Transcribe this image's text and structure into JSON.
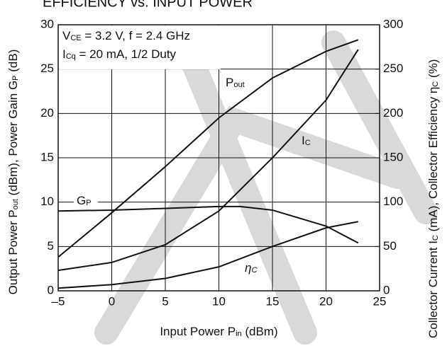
{
  "chart_data": {
    "type": "line",
    "title": "EFFICIENCY vs. INPUT POWER",
    "xlabel": [
      "Input Power  P",
      "in",
      " (dBm)"
    ],
    "ylabel": [
      "Output Power  P",
      "out",
      " (dBm), Power Gain  G",
      "P",
      " (dB)"
    ],
    "y2label": [
      "Collector Current  I",
      "C",
      " (mA), Collector Efficiency  η",
      "C",
      " (%)"
    ],
    "annotations": [
      [
        "V",
        "CE",
        " = 3.2 V, f = 2.4 GHz"
      ],
      [
        "I",
        "Cq",
        " = 20 mA, 1/2 Duty"
      ]
    ],
    "xlim": [
      -5,
      25
    ],
    "xticks": [
      {
        "value": -5,
        "label": "–5"
      },
      0,
      5,
      10,
      15,
      20,
      25
    ],
    "ylim": [
      0,
      30
    ],
    "yticks": [
      0,
      5,
      10,
      15,
      20,
      25,
      30
    ],
    "y2lim": [
      0,
      300
    ],
    "y2ticks": [
      0,
      50,
      100,
      150,
      200,
      250,
      300
    ],
    "grid": true,
    "series": [
      {
        "name": [
          "P",
          "out"
        ],
        "color": "#111111",
        "x": [
          -5,
          0,
          5,
          10,
          15,
          20,
          23
        ],
        "values": [
          3.8,
          8.8,
          14,
          19.5,
          24,
          27,
          28.3
        ]
      },
      {
        "name": [
          "G",
          "P"
        ],
        "color": "#111111",
        "x": [
          -5,
          0,
          5,
          10,
          12,
          15,
          20,
          23
        ],
        "values": [
          9,
          9.1,
          9.3,
          9.5,
          9.5,
          9.1,
          7.3,
          5.4
        ]
      },
      {
        "name": [
          "I",
          "C"
        ],
        "color": "#111111",
        "axis": "y2",
        "x": [
          -5,
          0,
          5,
          10,
          15,
          20,
          23
        ],
        "values": [
          23,
          32,
          52,
          90,
          150,
          215,
          272
        ]
      },
      {
        "name": [
          "η",
          "C"
        ],
        "color": "#111111",
        "axis": "y2",
        "x": [
          -5,
          0,
          5,
          10,
          15,
          20,
          23
        ],
        "values": [
          3,
          7,
          14,
          27,
          50,
          71,
          78
        ]
      }
    ]
  }
}
